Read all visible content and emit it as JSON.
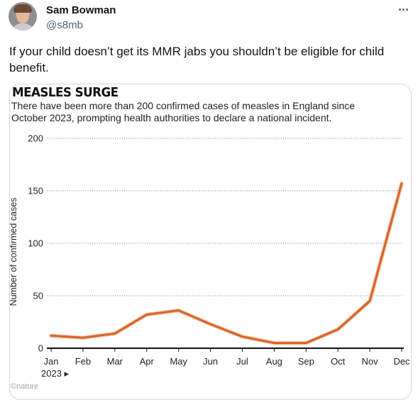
{
  "tweet": {
    "display_name": "Sam Bowman",
    "handle": "@s8mb",
    "text": "If your child doesn’t get its MMR jabs you shouldn’t be eligible for child benefit."
  },
  "icons": {
    "avatar": "profile-photo",
    "more": "more-horizontal-icon"
  },
  "media": {
    "credit": "©nature"
  },
  "chart_data": {
    "type": "line",
    "title": "MEASLES SURGE",
    "subtitle": "There have been more than 200 confirmed cases of measles in England since October 2023, prompting health authorities to declare a national incident.",
    "xlabel": "",
    "ylabel": "Number of confirmed cases",
    "categories": [
      "Jan",
      "Feb",
      "Mar",
      "Apr",
      "May",
      "Jun",
      "Jul",
      "Aug",
      "Sep",
      "Oct",
      "Nov",
      "Dec"
    ],
    "year_label": "2023 ▸",
    "series": [
      {
        "values": [
          12,
          10,
          14,
          32,
          36,
          23,
          11,
          5,
          5,
          18,
          45,
          157
        ],
        "color": "#d9622b"
      }
    ],
    "yticks": [
      0,
      50,
      100,
      150,
      200
    ],
    "ylim": [
      0,
      200
    ],
    "grid": "dotted horizontal"
  }
}
